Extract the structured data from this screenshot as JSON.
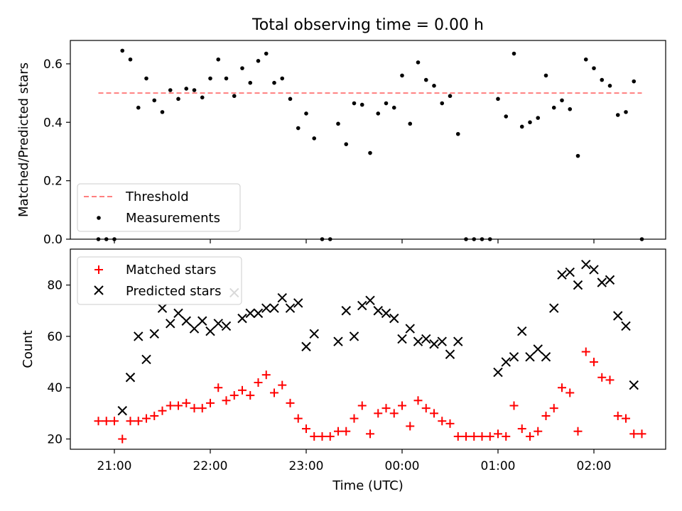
{
  "chart_data": [
    {
      "type": "scatter",
      "title": "Total observing time = 0.00 h",
      "xlabel": "",
      "ylabel": "Matched/Predicted stars",
      "ylim": [
        0,
        0.68
      ],
      "yticks": [
        "0.0",
        "0.2",
        "0.4",
        "0.6"
      ],
      "ytick_values": [
        0.0,
        0.2,
        0.4,
        0.6
      ],
      "legend": {
        "placement": "lower-left",
        "threshold_label": "Threshold",
        "measurements_label": "Measurements"
      },
      "threshold": {
        "value": 0.5,
        "x_range": [
          "20:50",
          "02:30"
        ],
        "color": "#ff7f7f"
      },
      "series": [
        {
          "name": "Measurements",
          "color": "#000000",
          "x": [
            "20:50",
            "20:55",
            "21:00",
            "21:05",
            "21:10",
            "21:15",
            "21:20",
            "21:25",
            "21:30",
            "21:35",
            "21:40",
            "21:45",
            "21:50",
            "21:55",
            "22:00",
            "22:05",
            "22:10",
            "22:15",
            "22:20",
            "22:25",
            "22:30",
            "22:35",
            "22:40",
            "22:45",
            "22:50",
            "22:55",
            "23:00",
            "23:05",
            "23:10",
            "23:15",
            "23:20",
            "23:25",
            "23:30",
            "23:35",
            "23:40",
            "23:45",
            "23:50",
            "23:55",
            "00:00",
            "00:05",
            "00:10",
            "00:15",
            "00:20",
            "00:25",
            "00:30",
            "00:35",
            "00:40",
            "00:45",
            "00:50",
            "00:55",
            "01:00",
            "01:05",
            "01:10",
            "01:15",
            "01:20",
            "01:25",
            "01:30",
            "01:35",
            "01:40",
            "01:45",
            "01:50",
            "01:55",
            "02:00",
            "02:05",
            "02:10",
            "02:15",
            "02:20",
            "02:25",
            "02:30"
          ],
          "y": [
            0.0,
            0.0,
            0.0,
            0.645,
            0.615,
            0.45,
            0.55,
            0.475,
            0.435,
            0.51,
            0.48,
            0.515,
            0.51,
            0.485,
            0.55,
            0.615,
            0.55,
            0.49,
            0.585,
            0.535,
            0.61,
            0.635,
            0.535,
            0.55,
            0.48,
            0.38,
            0.43,
            0.345,
            0.0,
            0.0,
            0.395,
            0.325,
            0.465,
            0.46,
            0.295,
            0.43,
            0.465,
            0.45,
            0.56,
            0.395,
            0.605,
            0.545,
            0.525,
            0.465,
            0.49,
            0.36,
            0.0,
            0.0,
            0.0,
            0.0,
            0.48,
            0.42,
            0.635,
            0.385,
            0.4,
            0.415,
            0.56,
            0.45,
            0.475,
            0.445,
            0.285,
            0.615,
            0.585,
            0.545,
            0.525,
            0.425,
            0.435,
            0.54,
            0.0
          ]
        }
      ]
    },
    {
      "type": "scatter",
      "title": "",
      "xlabel": "Time (UTC)",
      "ylabel": "Count",
      "ylim": [
        16,
        94
      ],
      "yticks": [
        "20",
        "40",
        "60",
        "80"
      ],
      "ytick_values": [
        20,
        40,
        60,
        80
      ],
      "xticks": [
        "21:00",
        "22:00",
        "23:00",
        "00:00",
        "01:00",
        "02:00"
      ],
      "xtick_values": [
        "21:00",
        "22:00",
        "23:00",
        "00:00",
        "01:00",
        "02:00"
      ],
      "legend": {
        "placement": "upper-left",
        "matched_label": "Matched stars",
        "predicted_label": "Predicted stars"
      },
      "series": [
        {
          "name": "Matched stars",
          "marker": "+",
          "color": "#ff0000",
          "x": [
            "20:50",
            "20:55",
            "21:00",
            "21:05",
            "21:10",
            "21:15",
            "21:20",
            "21:25",
            "21:30",
            "21:35",
            "21:40",
            "21:45",
            "21:50",
            "21:55",
            "22:00",
            "22:05",
            "22:10",
            "22:15",
            "22:20",
            "22:25",
            "22:30",
            "22:35",
            "22:40",
            "22:45",
            "22:50",
            "22:55",
            "23:00",
            "23:05",
            "23:10",
            "23:15",
            "23:20",
            "23:25",
            "23:30",
            "23:35",
            "23:40",
            "23:45",
            "23:50",
            "23:55",
            "00:00",
            "00:05",
            "00:10",
            "00:15",
            "00:20",
            "00:25",
            "00:30",
            "00:35",
            "00:40",
            "00:45",
            "00:50",
            "00:55",
            "01:00",
            "01:05",
            "01:10",
            "01:15",
            "01:20",
            "01:25",
            "01:30",
            "01:35",
            "01:40",
            "01:45",
            "01:50",
            "01:55",
            "02:00",
            "02:05",
            "02:10",
            "02:15",
            "02:20",
            "02:25",
            "02:30"
          ],
          "y": [
            27,
            27,
            27,
            20,
            27,
            27,
            28,
            29,
            31,
            33,
            33,
            34,
            32,
            32,
            34,
            40,
            35,
            37,
            39,
            37,
            42,
            45,
            38,
            41,
            34,
            28,
            24,
            21,
            21,
            21,
            23,
            23,
            28,
            33,
            22,
            30,
            32,
            30,
            33,
            25,
            35,
            32,
            30,
            27,
            26,
            21,
            21,
            21,
            21,
            21,
            22,
            21,
            33,
            24,
            21,
            23,
            29,
            32,
            40,
            38,
            23,
            54,
            50,
            44,
            43,
            29,
            28,
            22,
            22
          ]
        },
        {
          "name": "Predicted stars",
          "marker": "x",
          "color": "#000000",
          "x": [
            "21:05",
            "21:10",
            "21:15",
            "21:20",
            "21:25",
            "21:30",
            "21:35",
            "21:40",
            "21:45",
            "21:50",
            "21:55",
            "22:00",
            "22:05",
            "22:10",
            "22:15",
            "22:20",
            "22:25",
            "22:30",
            "22:35",
            "22:40",
            "22:45",
            "22:50",
            "22:55",
            "23:00",
            "23:05",
            "23:20",
            "23:25",
            "23:30",
            "23:35",
            "23:40",
            "23:45",
            "23:50",
            "23:55",
            "00:00",
            "00:05",
            "00:10",
            "00:15",
            "00:20",
            "00:25",
            "00:30",
            "00:35",
            "01:00",
            "01:05",
            "01:10",
            "01:15",
            "01:20",
            "01:25",
            "01:30",
            "01:35",
            "01:40",
            "01:45",
            "01:50",
            "01:55",
            "02:00",
            "02:05",
            "02:10",
            "02:15",
            "02:20",
            "02:25"
          ],
          "y": [
            31,
            44,
            60,
            51,
            61,
            71,
            65,
            69,
            66,
            63,
            66,
            62,
            65,
            64,
            77,
            67,
            69,
            69,
            71,
            71,
            75,
            71,
            73,
            56,
            61,
            58,
            70,
            60,
            72,
            74,
            70,
            69,
            67,
            59,
            63,
            58,
            59,
            57,
            58,
            53,
            58,
            46,
            50,
            52,
            62,
            52,
            55,
            52,
            71,
            84,
            85,
            80,
            88,
            86,
            81,
            82,
            68,
            64,
            41
          ]
        }
      ]
    }
  ]
}
